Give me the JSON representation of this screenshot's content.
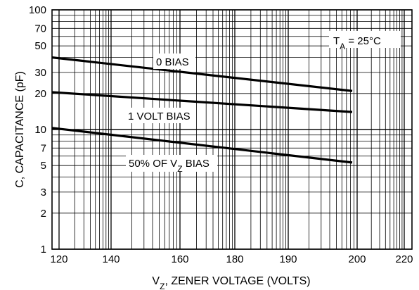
{
  "chart_data": {
    "type": "line",
    "title": "",
    "xlabel_main": "V",
    "xlabel_sub": "Z",
    "xlabel_rest": ", ZENER VOLTAGE (VOLTS)",
    "ylabel": "C, CAPACITANCE (pF)",
    "y_scale": "log",
    "ylim": [
      1,
      100
    ],
    "x_tick_labels": [
      "120",
      "140",
      "160",
      "180",
      "190",
      "200",
      "220"
    ],
    "y_tick_labels": [
      "100",
      "70",
      "50",
      "30",
      "20",
      "10",
      "7",
      "5",
      "3",
      "2",
      "1"
    ],
    "y_tick_values": [
      100,
      70,
      50,
      30,
      20,
      10,
      7,
      5,
      3,
      2,
      1
    ],
    "grid": true,
    "annotation": {
      "main": "T",
      "sub": "A",
      "rest": " = 25°C",
      "placement": "top-right"
    },
    "series": [
      {
        "name": "0 BIAS",
        "label_main": "0 BIAS",
        "label_sub": "",
        "label_rest": "",
        "x": [
          "120",
          "200"
        ],
        "values": [
          40,
          21
        ]
      },
      {
        "name": "1 VOLT BIAS",
        "label_main": "1 VOLT BIAS",
        "label_sub": "",
        "label_rest": "",
        "x": [
          "120",
          "200"
        ],
        "values": [
          20.5,
          14
        ]
      },
      {
        "name": "50% OF VZ BIAS",
        "label_main": "50% OF V",
        "label_sub": "Z",
        "label_rest": " BIAS",
        "x": [
          "120",
          "200"
        ],
        "values": [
          10.3,
          5.3
        ]
      }
    ]
  }
}
